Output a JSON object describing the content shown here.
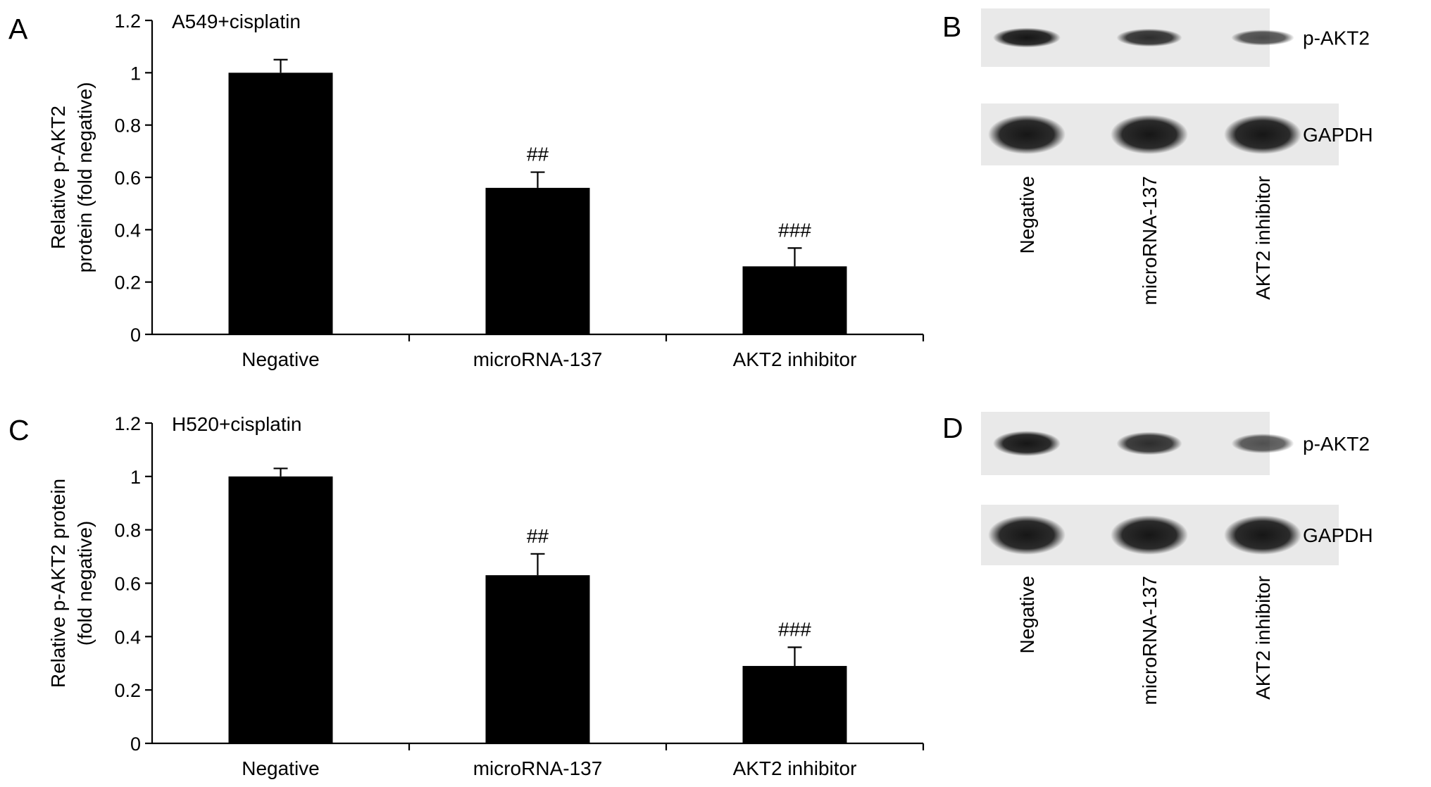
{
  "colors": {
    "bar": "#000000",
    "axis": "#000000",
    "membrane": "#e9e9e9",
    "band": "#161616"
  },
  "panels": {
    "A": {
      "letter": "A"
    },
    "B": {
      "letter": "B"
    },
    "C": {
      "letter": "C"
    },
    "D": {
      "letter": "D"
    }
  },
  "chart_data": [
    {
      "panel": "A",
      "type": "bar",
      "annotation": "A549+cisplatin",
      "categories": [
        "Negative",
        "microRNA-137",
        "AKT2 inhibitor"
      ],
      "values": [
        1.0,
        0.56,
        0.26
      ],
      "errors": [
        0.05,
        0.06,
        0.07
      ],
      "significance": [
        "",
        "##",
        "###"
      ],
      "ylabel_lines": [
        "Relative p-AKT2",
        "protein (fold negative)"
      ],
      "ylim": [
        0,
        1.2
      ],
      "yticks": [
        "0",
        "0.2",
        "0.4",
        "0.6",
        "0.8",
        "1",
        "1.2"
      ],
      "grid": false
    },
    {
      "panel": "C",
      "type": "bar",
      "annotation": "H520+cisplatin",
      "categories": [
        "Negative",
        "microRNA-137",
        "AKT2 inhibitor"
      ],
      "values": [
        1.0,
        0.63,
        0.29
      ],
      "errors": [
        0.03,
        0.08,
        0.07
      ],
      "significance": [
        "",
        "##",
        "###"
      ],
      "ylabel_lines": [
        "Relative p-AKT2 protein",
        "(fold negative)"
      ],
      "ylim": [
        0,
        1.2
      ],
      "yticks": [
        "0",
        "0.2",
        "0.4",
        "0.6",
        "0.8",
        "1",
        "1.2"
      ],
      "grid": false
    }
  ],
  "blots": [
    {
      "panel": "B",
      "rows": [
        {
          "label": "p-AKT2",
          "intensity": [
            1.0,
            0.8,
            0.55
          ]
        },
        {
          "label": "GAPDH",
          "intensity": [
            1.0,
            1.0,
            1.0
          ]
        }
      ],
      "lanes": [
        "Negative",
        "microRNA-137",
        "AKT2 inhibitor"
      ]
    },
    {
      "panel": "D",
      "rows": [
        {
          "label": "p-AKT2",
          "intensity": [
            1.0,
            0.8,
            0.5
          ]
        },
        {
          "label": "GAPDH",
          "intensity": [
            1.0,
            1.0,
            1.0
          ]
        }
      ],
      "lanes": [
        "Negative",
        "microRNA-137",
        "AKT2 inhibitor"
      ]
    }
  ]
}
